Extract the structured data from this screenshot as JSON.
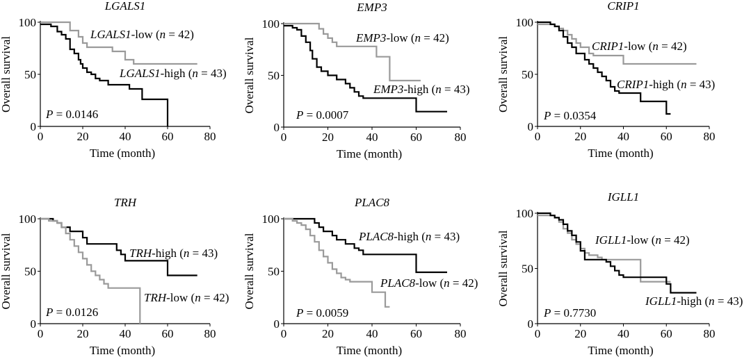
{
  "chart_data": [
    {
      "type": "line",
      "title": "LGALS1",
      "xlabel": "Time (month)",
      "ylabel": "Overall survival",
      "xlim": [
        0,
        80
      ],
      "ylim": [
        0,
        100
      ],
      "xticks": [
        0,
        20,
        40,
        60,
        80
      ],
      "yticks": [
        0,
        50,
        100
      ],
      "pvalue": "P = 0.0146",
      "series": [
        {
          "name": "LGALS1-low (n = 42)",
          "gene": "LGALS1",
          "suffix": "-low (",
          "n_value": "= 42)",
          "color": "#9a9a9a",
          "points": [
            [
              0,
              100
            ],
            [
              12,
              100
            ],
            [
              14,
              92
            ],
            [
              18,
              86
            ],
            [
              20,
              80
            ],
            [
              22,
              76
            ],
            [
              32,
              76
            ],
            [
              34,
              72
            ],
            [
              38,
              72
            ],
            [
              40,
              64
            ],
            [
              42,
              64
            ],
            [
              44,
              60
            ],
            [
              74,
              60
            ]
          ]
        },
        {
          "name": "LGALS1-high (n = 43)",
          "gene": "LGALS1",
          "suffix": "-high (",
          "n_value": "= 43)",
          "color": "#000000",
          "points": [
            [
              0,
              98
            ],
            [
              5,
              96
            ],
            [
              8,
              91
            ],
            [
              10,
              88
            ],
            [
              12,
              84
            ],
            [
              14,
              74
            ],
            [
              16,
              70
            ],
            [
              18,
              64
            ],
            [
              19,
              60
            ],
            [
              20,
              56
            ],
            [
              22,
              52
            ],
            [
              24,
              50
            ],
            [
              26,
              46
            ],
            [
              28,
              44
            ],
            [
              30,
              44
            ],
            [
              32,
              40
            ],
            [
              40,
              40
            ],
            [
              42,
              36
            ],
            [
              48,
              26
            ],
            [
              58,
              26
            ],
            [
              60,
              0
            ]
          ]
        }
      ]
    },
    {
      "type": "line",
      "title": "EMP3",
      "xlabel": "Time (month)",
      "ylabel": "Overall survival",
      "xlim": [
        0,
        80
      ],
      "ylim": [
        0,
        100
      ],
      "xticks": [
        0,
        20,
        40,
        60,
        80
      ],
      "yticks": [
        0,
        50,
        100
      ],
      "pvalue": "P = 0.0007",
      "series": [
        {
          "name": "EMP3-low (n = 42)",
          "gene": "EMP3",
          "suffix": "-low (",
          "n_value": "= 42)",
          "color": "#9a9a9a",
          "points": [
            [
              0,
              100
            ],
            [
              14,
              100
            ],
            [
              16,
              95
            ],
            [
              18,
              90
            ],
            [
              20,
              86
            ],
            [
              22,
              82
            ],
            [
              24,
              78
            ],
            [
              40,
              78
            ],
            [
              42,
              68
            ],
            [
              46,
              68
            ],
            [
              48,
              45
            ],
            [
              62,
              45
            ]
          ]
        },
        {
          "name": "EMP3-high (n = 43)",
          "gene": "EMP3",
          "suffix": "-high (",
          "n_value": "= 43)",
          "color": "#000000",
          "points": [
            [
              0,
              98
            ],
            [
              4,
              96
            ],
            [
              6,
              94
            ],
            [
              8,
              88
            ],
            [
              10,
              82
            ],
            [
              12,
              74
            ],
            [
              13,
              66
            ],
            [
              15,
              58
            ],
            [
              17,
              54
            ],
            [
              20,
              50
            ],
            [
              24,
              46
            ],
            [
              28,
              42
            ],
            [
              30,
              38
            ],
            [
              32,
              34
            ],
            [
              34,
              30
            ],
            [
              36,
              28
            ],
            [
              58,
              28
            ],
            [
              60,
              15
            ],
            [
              74,
              15
            ]
          ]
        }
      ]
    },
    {
      "type": "line",
      "title": "CRIP1",
      "xlabel": "Time (month)",
      "ylabel": "Overall survival",
      "xlim": [
        0,
        80
      ],
      "ylim": [
        0,
        100
      ],
      "xticks": [
        0,
        20,
        40,
        60,
        80
      ],
      "yticks": [
        0,
        50,
        100
      ],
      "pvalue": "P = 0.0354",
      "series": [
        {
          "name": "CRIP1-low (n = 42)",
          "gene": "CRIP1",
          "suffix": "-low (",
          "n_value": "= 42)",
          "color": "#9a9a9a",
          "points": [
            [
              0,
              98
            ],
            [
              8,
              96
            ],
            [
              10,
              94
            ],
            [
              12,
              92
            ],
            [
              14,
              88
            ],
            [
              16,
              84
            ],
            [
              18,
              80
            ],
            [
              20,
              76
            ],
            [
              24,
              70
            ],
            [
              26,
              68
            ],
            [
              38,
              68
            ],
            [
              40,
              60
            ],
            [
              74,
              60
            ]
          ]
        },
        {
          "name": "CRIP1-high (n = 43)",
          "gene": "CRIP1",
          "suffix": "-high (",
          "n_value": "= 43)",
          "color": "#000000",
          "points": [
            [
              0,
              100
            ],
            [
              6,
              98
            ],
            [
              8,
              96
            ],
            [
              10,
              92
            ],
            [
              12,
              86
            ],
            [
              14,
              80
            ],
            [
              16,
              76
            ],
            [
              18,
              70
            ],
            [
              22,
              64
            ],
            [
              24,
              60
            ],
            [
              26,
              56
            ],
            [
              28,
              52
            ],
            [
              30,
              48
            ],
            [
              32,
              44
            ],
            [
              34,
              38
            ],
            [
              36,
              34
            ],
            [
              38,
              32
            ],
            [
              46,
              32
            ],
            [
              48,
              24
            ],
            [
              58,
              24
            ],
            [
              60,
              12
            ],
            [
              62,
              12
            ]
          ]
        }
      ]
    },
    {
      "type": "line",
      "title": "TRH",
      "xlabel": "Time (month)",
      "ylabel": "Overall survival",
      "xlim": [
        0,
        80
      ],
      "ylim": [
        0,
        100
      ],
      "xticks": [
        0,
        20,
        40,
        60,
        80
      ],
      "yticks": [
        0,
        50,
        100
      ],
      "pvalue": "P = 0.0126",
      "series": [
        {
          "name": "TRH-high (n = 43)",
          "gene": "TRH",
          "suffix": "-high (",
          "n_value": "= 43)",
          "color": "#000000",
          "points": [
            [
              0,
              100
            ],
            [
              6,
              98
            ],
            [
              8,
              96
            ],
            [
              10,
              92
            ],
            [
              14,
              88
            ],
            [
              20,
              82
            ],
            [
              22,
              76
            ],
            [
              34,
              76
            ],
            [
              36,
              70
            ],
            [
              38,
              66
            ],
            [
              40,
              60
            ],
            [
              58,
              60
            ],
            [
              60,
              46
            ],
            [
              74,
              46
            ]
          ]
        },
        {
          "name": "TRH-low (n = 42)",
          "gene": "TRH",
          "suffix": "-low (",
          "n_value": "= 42)",
          "color": "#9a9a9a",
          "points": [
            [
              0,
              100
            ],
            [
              4,
              98
            ],
            [
              8,
              96
            ],
            [
              10,
              92
            ],
            [
              12,
              86
            ],
            [
              14,
              80
            ],
            [
              16,
              74
            ],
            [
              18,
              68
            ],
            [
              20,
              62
            ],
            [
              22,
              56
            ],
            [
              24,
              50
            ],
            [
              26,
              46
            ],
            [
              28,
              42
            ],
            [
              30,
              38
            ],
            [
              32,
              34
            ],
            [
              46,
              34
            ],
            [
              47,
              0
            ]
          ]
        }
      ]
    },
    {
      "type": "line",
      "title": "PLAC8",
      "xlabel": "Time (month)",
      "ylabel": "Overall survival",
      "xlim": [
        0,
        80
      ],
      "ylim": [
        0,
        100
      ],
      "xticks": [
        0,
        20,
        40,
        60,
        80
      ],
      "yticks": [
        0,
        50,
        100
      ],
      "pvalue": "P = 0.0059",
      "series": [
        {
          "name": "PLAC8-high (n = 43)",
          "gene": "PLAC8",
          "suffix": "-high (",
          "n_value": "= 43)",
          "color": "#000000",
          "points": [
            [
              0,
              100
            ],
            [
              12,
              100
            ],
            [
              14,
              96
            ],
            [
              16,
              92
            ],
            [
              18,
              88
            ],
            [
              22,
              84
            ],
            [
              24,
              80
            ],
            [
              28,
              76
            ],
            [
              32,
              72
            ],
            [
              34,
              70
            ],
            [
              36,
              66
            ],
            [
              58,
              66
            ],
            [
              60,
              49
            ],
            [
              74,
              49
            ]
          ]
        },
        {
          "name": "PLAC8-low (n = 42)",
          "gene": "PLAC8",
          "suffix": "-low (",
          "n_value": "= 42)",
          "color": "#9a9a9a",
          "points": [
            [
              0,
              100
            ],
            [
              4,
              98
            ],
            [
              6,
              96
            ],
            [
              8,
              94
            ],
            [
              10,
              90
            ],
            [
              12,
              84
            ],
            [
              14,
              78
            ],
            [
              16,
              70
            ],
            [
              18,
              64
            ],
            [
              20,
              58
            ],
            [
              22,
              52
            ],
            [
              24,
              48
            ],
            [
              26,
              44
            ],
            [
              28,
              42
            ],
            [
              30,
              40
            ],
            [
              38,
              40
            ],
            [
              40,
              30
            ],
            [
              44,
              30
            ],
            [
              46,
              16
            ],
            [
              48,
              16
            ]
          ]
        }
      ]
    },
    {
      "type": "line",
      "title": "IGLL1",
      "xlabel": "Time (month)",
      "ylabel": "Overall survival",
      "xlim": [
        0,
        80
      ],
      "ylim": [
        0,
        100
      ],
      "xticks": [
        0,
        20,
        40,
        60,
        80
      ],
      "yticks": [
        0,
        50,
        100
      ],
      "pvalue": "P = 0.7730",
      "series": [
        {
          "name": "IGLL1-low (n = 42)",
          "gene": "IGLL1",
          "suffix": "-low (",
          "n_value": "= 42)",
          "color": "#9a9a9a",
          "points": [
            [
              0,
              98
            ],
            [
              6,
              98
            ],
            [
              8,
              96
            ],
            [
              10,
              92
            ],
            [
              12,
              86
            ],
            [
              14,
              82
            ],
            [
              16,
              76
            ],
            [
              18,
              72
            ],
            [
              20,
              68
            ],
            [
              22,
              64
            ],
            [
              24,
              62
            ],
            [
              26,
              62
            ],
            [
              28,
              60
            ],
            [
              30,
              58
            ],
            [
              46,
              58
            ],
            [
              48,
              38
            ],
            [
              62,
              38
            ]
          ]
        },
        {
          "name": "IGLL1-high (n = 43)",
          "gene": "IGLL1",
          "suffix": "-high (",
          "n_value": "= 43)",
          "color": "#000000",
          "points": [
            [
              0,
              100
            ],
            [
              6,
              98
            ],
            [
              8,
              96
            ],
            [
              10,
              94
            ],
            [
              12,
              90
            ],
            [
              14,
              84
            ],
            [
              16,
              80
            ],
            [
              18,
              74
            ],
            [
              20,
              66
            ],
            [
              22,
              58
            ],
            [
              30,
              58
            ],
            [
              32,
              56
            ],
            [
              34,
              52
            ],
            [
              36,
              48
            ],
            [
              38,
              44
            ],
            [
              40,
              42
            ],
            [
              58,
              42
            ],
            [
              60,
              36
            ],
            [
              62,
              28
            ],
            [
              74,
              28
            ]
          ]
        }
      ]
    }
  ]
}
